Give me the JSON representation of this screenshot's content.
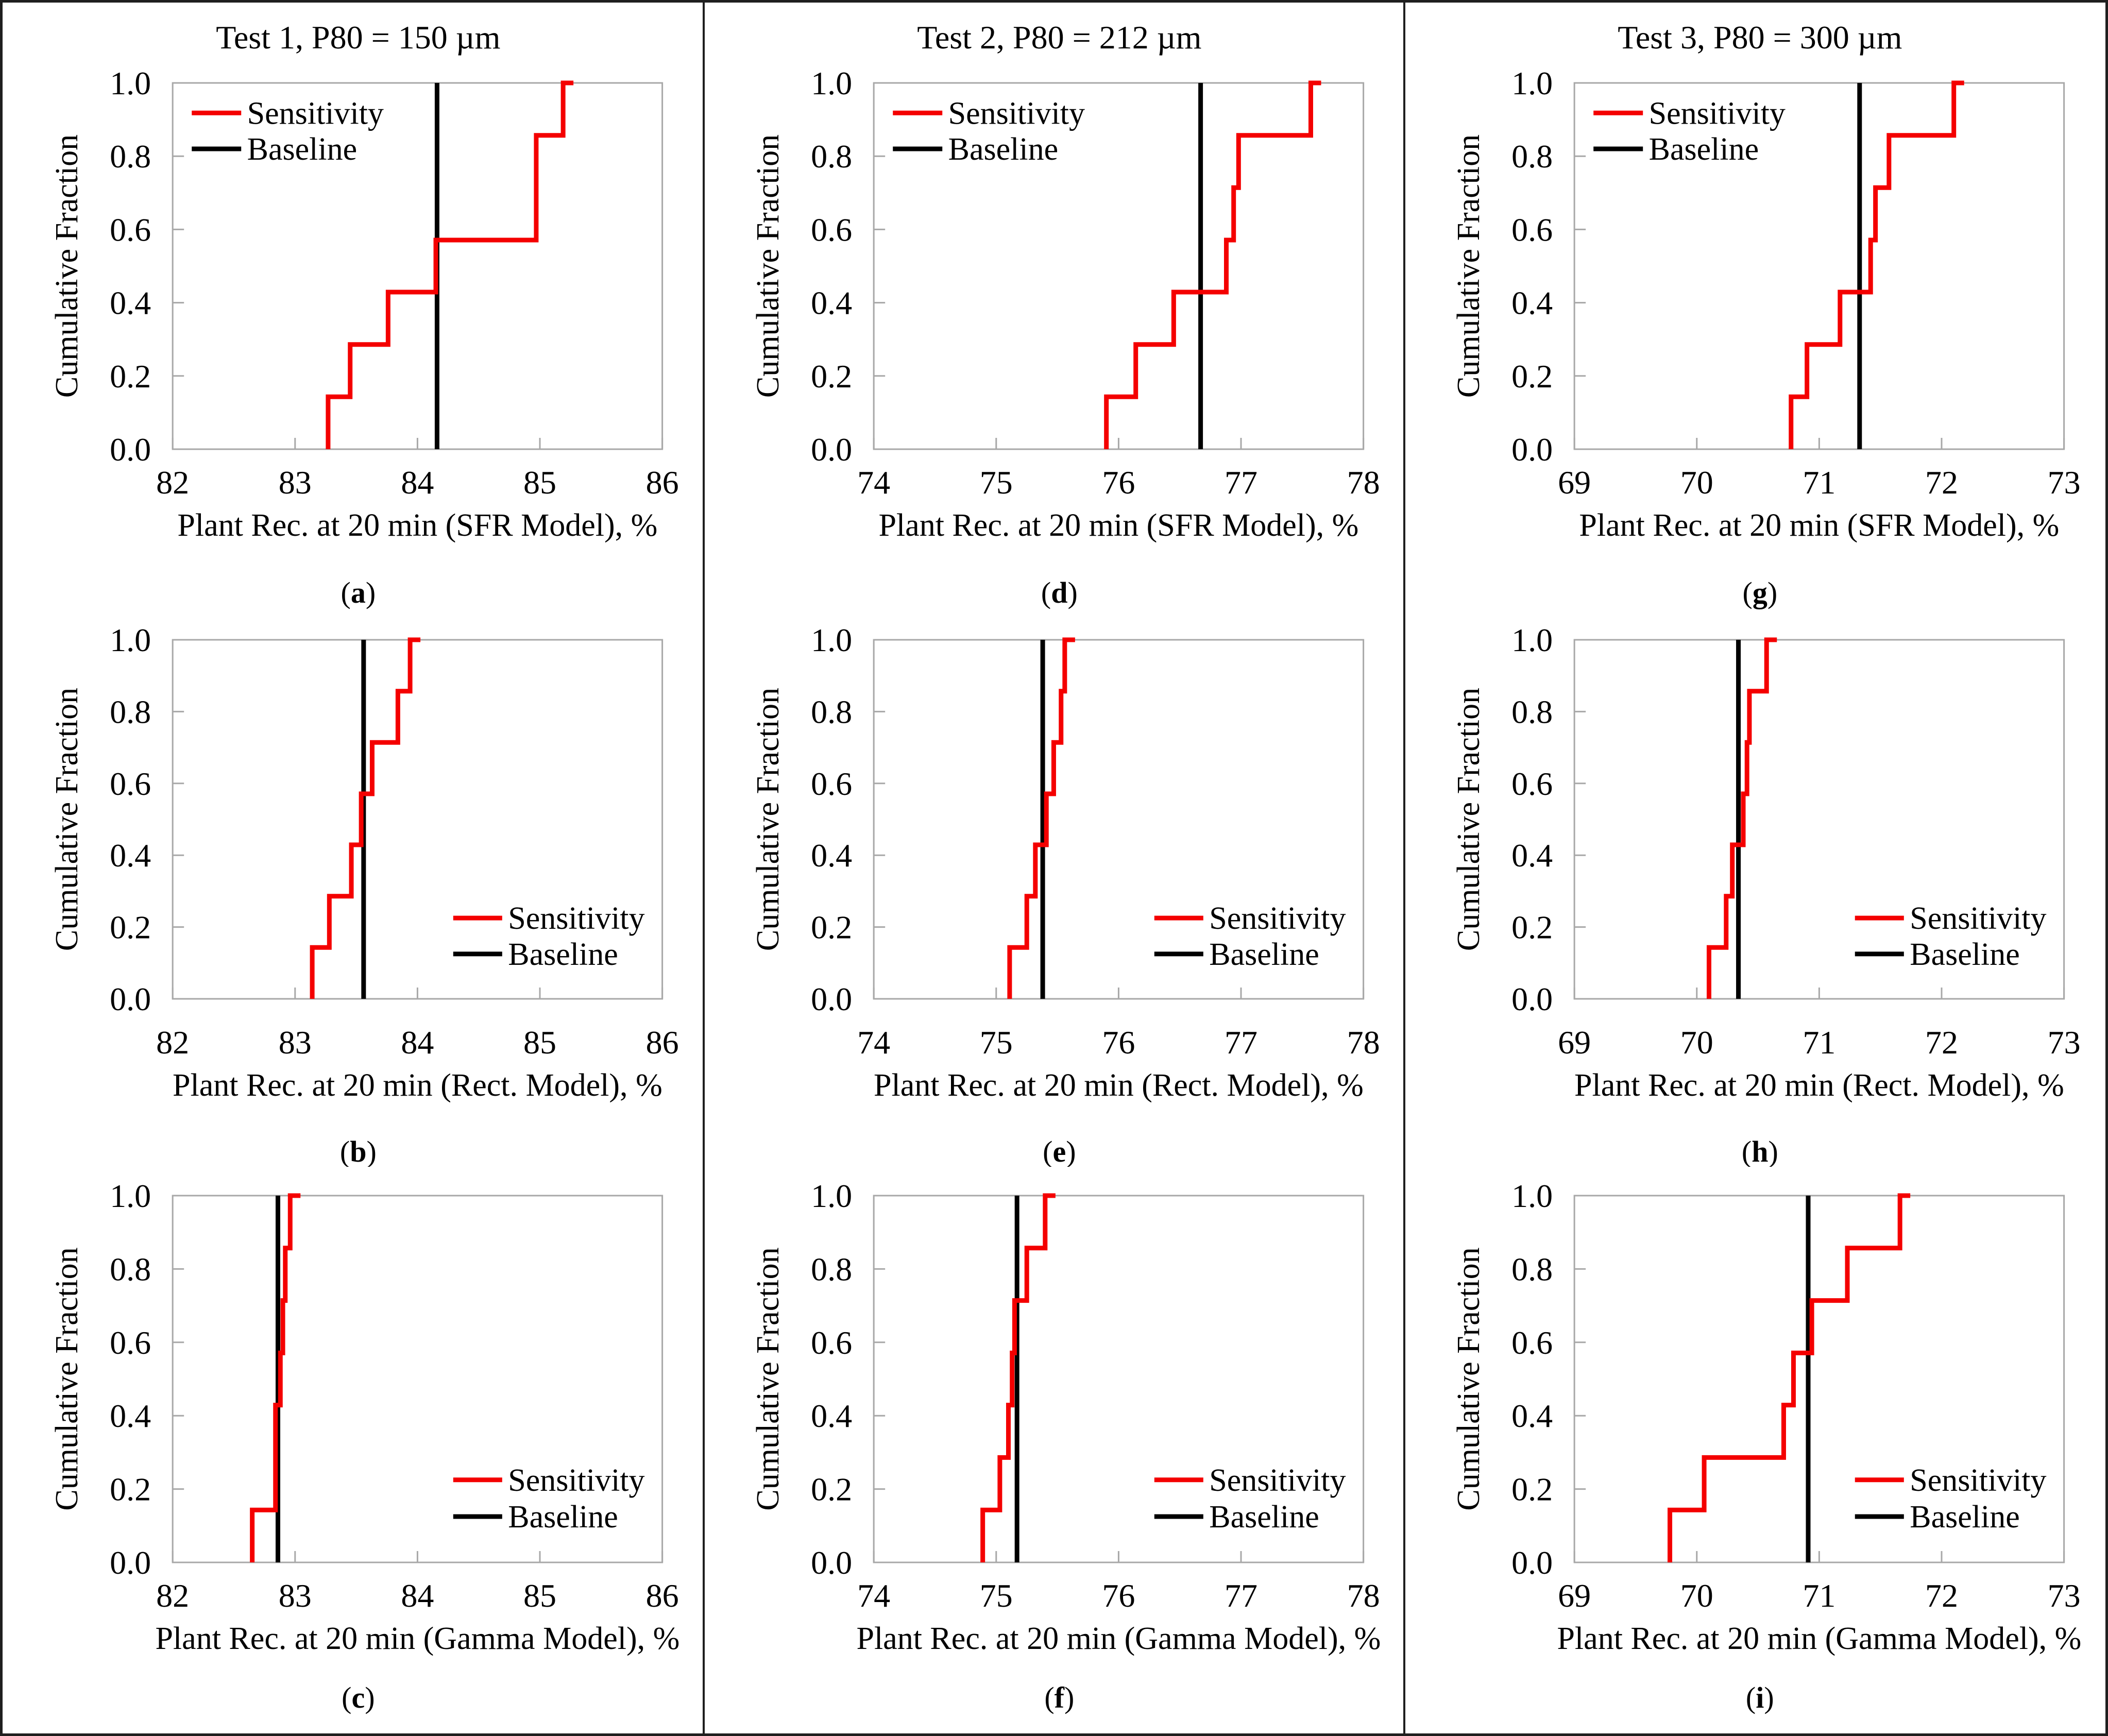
{
  "page": {
    "background": "#ffffff"
  },
  "chart_data": {
    "type": "step",
    "description": "Cumulative fraction step plots of sensitivity runs vs baseline plant recovery",
    "y_axis": {
      "label": "Cumulative Fraction",
      "min": 0.0,
      "max": 1.0,
      "ticks": [
        0.0,
        0.2,
        0.4,
        0.6,
        0.8,
        1.0
      ]
    },
    "legend": {
      "sensitivity_label": "Sensitivity",
      "baseline_label": "Baseline"
    },
    "colors": {
      "sensitivity": "#f40000",
      "baseline": "#000000",
      "frame": "#a8a8a8",
      "tick": "#a8a8a8",
      "text": "#000000",
      "divider": "#1f1f1f"
    },
    "cumulative_fractions": [
      0.143,
      0.286,
      0.429,
      0.571,
      0.714,
      0.857,
      1.0
    ],
    "column_titles": [
      "Test 1, P80 = 150 µm",
      "Test 2, P80 = 212 µm",
      "Test 3, P80 = 300 µm"
    ],
    "charts": [
      {
        "id": "a",
        "row": 0,
        "col": 0,
        "title": "Test 1, P80 = 150 µm",
        "caption": "(a)",
        "x_label": "Plant Rec. at 20 min (SFR Model), %",
        "x_min": 82,
        "x_max": 86,
        "x_ticks": [
          82,
          83,
          84,
          85,
          86
        ],
        "baseline_x": 84.16,
        "sensitivity_x": [
          83.27,
          83.45,
          83.76,
          84.15,
          84.97,
          84.97,
          85.19
        ],
        "legend_pos": "top-left"
      },
      {
        "id": "d",
        "row": 0,
        "col": 1,
        "title": "Test 2, P80 = 212 µm",
        "caption": "(d)",
        "x_label": "Plant Rec. at 20 min (SFR Model), %",
        "x_min": 74,
        "x_max": 78,
        "x_ticks": [
          74,
          75,
          76,
          77,
          78
        ],
        "baseline_x": 76.67,
        "sensitivity_x": [
          75.9,
          76.14,
          76.45,
          76.88,
          76.94,
          76.98,
          77.57
        ],
        "legend_pos": "top-left"
      },
      {
        "id": "g",
        "row": 0,
        "col": 2,
        "title": "Test 3, P80 = 300 µm",
        "caption": "(g)",
        "x_label": "Plant Rec. at 20 min (SFR Model), %",
        "x_min": 69,
        "x_max": 73,
        "x_ticks": [
          69,
          70,
          71,
          72,
          73
        ],
        "baseline_x": 71.33,
        "sensitivity_x": [
          70.77,
          70.9,
          71.17,
          71.42,
          71.46,
          71.57,
          72.1
        ],
        "legend_pos": "top-left"
      },
      {
        "id": "b",
        "row": 1,
        "col": 0,
        "title": "",
        "caption": "(b)",
        "x_label": "Plant Rec. at 20 min (Rect. Model), %",
        "x_min": 82,
        "x_max": 86,
        "x_ticks": [
          82,
          83,
          84,
          85,
          86
        ],
        "baseline_x": 83.56,
        "sensitivity_x": [
          83.14,
          83.28,
          83.46,
          83.54,
          83.63,
          83.84,
          83.94
        ],
        "legend_pos": "bottom-right"
      },
      {
        "id": "e",
        "row": 1,
        "col": 1,
        "title": "",
        "caption": "(e)",
        "x_label": "Plant Rec. at 20 min (Rect. Model), %",
        "x_min": 74,
        "x_max": 78,
        "x_ticks": [
          74,
          75,
          76,
          77,
          78
        ],
        "baseline_x": 75.38,
        "sensitivity_x": [
          75.11,
          75.25,
          75.32,
          75.41,
          75.47,
          75.53,
          75.56
        ],
        "legend_pos": "bottom-right"
      },
      {
        "id": "h",
        "row": 1,
        "col": 2,
        "title": "",
        "caption": "(h)",
        "x_label": "Plant Rec. at 20 min (Rect. Model), %",
        "x_min": 69,
        "x_max": 73,
        "x_ticks": [
          69,
          70,
          71,
          72,
          73
        ],
        "baseline_x": 70.34,
        "sensitivity_x": [
          70.1,
          70.24,
          70.29,
          70.38,
          70.41,
          70.43,
          70.57
        ],
        "legend_pos": "bottom-right"
      },
      {
        "id": "c",
        "row": 2,
        "col": 0,
        "title": "",
        "caption": "(c)",
        "x_label": "Plant Rec. at 20 min (Gamma Model), %",
        "x_min": 82,
        "x_max": 86,
        "x_ticks": [
          82,
          83,
          84,
          85,
          86
        ],
        "baseline_x": 82.86,
        "sensitivity_x": [
          82.65,
          82.84,
          82.84,
          82.88,
          82.9,
          82.92,
          82.96
        ],
        "legend_pos": "bottom-right"
      },
      {
        "id": "f",
        "row": 2,
        "col": 1,
        "title": "",
        "caption": "(f)",
        "x_label": "Plant Rec. at 20 min (Gamma Model), %",
        "x_min": 74,
        "x_max": 78,
        "x_ticks": [
          74,
          75,
          76,
          77,
          78
        ],
        "baseline_x": 75.17,
        "sensitivity_x": [
          74.89,
          75.03,
          75.1,
          75.13,
          75.15,
          75.25,
          75.4
        ],
        "legend_pos": "bottom-right"
      },
      {
        "id": "i",
        "row": 2,
        "col": 2,
        "title": "",
        "caption": "(i)",
        "x_label": "Plant Rec. at 20 min (Gamma Model), %",
        "x_min": 69,
        "x_max": 73,
        "x_ticks": [
          69,
          70,
          71,
          72,
          73
        ],
        "baseline_x": 70.91,
        "sensitivity_x": [
          69.78,
          70.06,
          70.71,
          70.79,
          70.94,
          71.23,
          71.66
        ],
        "legend_pos": "bottom-right"
      }
    ]
  }
}
